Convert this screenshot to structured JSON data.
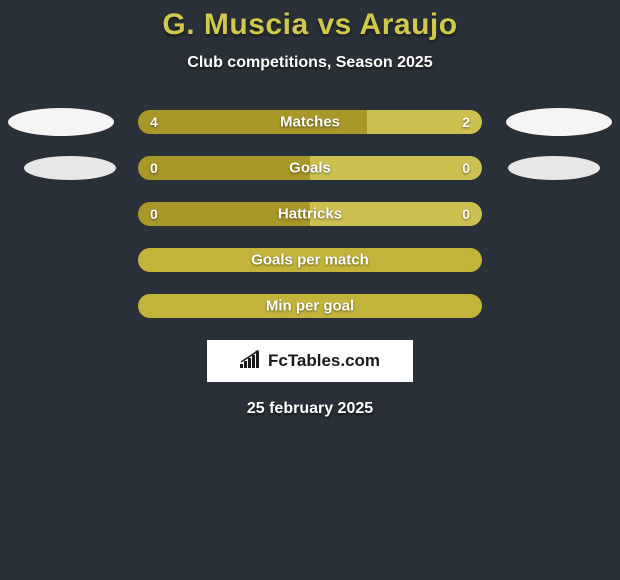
{
  "title": "G. Muscia vs Araujo",
  "subtitle": "Club competitions, Season 2025",
  "background_color": "#2a3037",
  "title_color": "#d0c84a",
  "text_color": "#ffffff",
  "rows": [
    {
      "label": "Matches",
      "left_value": "4",
      "right_value": "2",
      "left_percent": 66.67,
      "right_percent": 33.33,
      "left_fill_color": "#a89828",
      "right_fill_color": "#ccc050",
      "has_values": true,
      "show_ellipses": true,
      "ellipse_class": "ellipse-row1"
    },
    {
      "label": "Goals",
      "left_value": "0",
      "right_value": "0",
      "left_percent": 50,
      "right_percent": 50,
      "left_fill_color": "#a89828",
      "right_fill_color": "#ccc050",
      "has_values": true,
      "show_ellipses": true,
      "ellipse_class": "ellipse-row2"
    },
    {
      "label": "Hattricks",
      "left_value": "0",
      "right_value": "0",
      "left_percent": 50,
      "right_percent": 50,
      "left_fill_color": "#a89828",
      "right_fill_color": "#ccc050",
      "has_values": true,
      "show_ellipses": false
    },
    {
      "label": "Goals per match",
      "has_values": false,
      "solid_color": "#c2b43a",
      "show_ellipses": false
    },
    {
      "label": "Min per goal",
      "has_values": false,
      "solid_color": "#c2b43a",
      "show_ellipses": false
    }
  ],
  "logo": {
    "text": "FcTables.com",
    "bg_color": "#ffffff",
    "text_color": "#1a1a1a"
  },
  "date": "25 february 2025"
}
